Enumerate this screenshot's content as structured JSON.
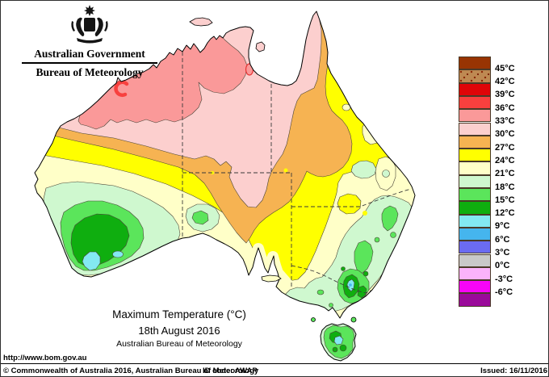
{
  "header": {
    "government": "Australian Government",
    "agency": "Bureau of Meteorology"
  },
  "title": {
    "line1": "Maximum Temperature (°C)",
    "line2": "18th August 2016",
    "line3": "Australian Bureau of Meteorology"
  },
  "map": {
    "bands": {
      "45_plus": "#983403",
      "42_45": "#BE8952",
      "39_42": "#DF0508",
      "36_39": "#F8403E",
      "33_36": "#FA9999",
      "30_33": "#FCCFCE",
      "27_30": "#F6B352",
      "24_27": "#FFFF00",
      "21_24": "#FFFFC8",
      "18_21": "#CFF8CF",
      "15_18": "#5BE55B",
      "12_15": "#0FAE0F",
      "9_12": "#83E9F2",
      "6_9": "#45B5EE",
      "3_6": "#6B6BF2",
      "0_3": "#C9C9C9",
      "n3_0": "#FBB3FB",
      "n6_n3": "#F705F7",
      "below_n6": "#9A0A9A"
    }
  },
  "legend": {
    "entries": [
      {
        "band": "45_plus",
        "label": "45°C",
        "speckled": false
      },
      {
        "band": "42_45",
        "label": "42°C",
        "speckled": true
      },
      {
        "band": "39_42",
        "label": "39°C",
        "speckled": false
      },
      {
        "band": "36_39",
        "label": "36°C",
        "speckled": false
      },
      {
        "band": "33_36",
        "label": "33°C",
        "speckled": false
      },
      {
        "band": "30_33",
        "label": "30°C",
        "speckled": false
      },
      {
        "band": "27_30",
        "label": "27°C",
        "speckled": false
      },
      {
        "band": "24_27",
        "label": "24°C",
        "speckled": false
      },
      {
        "band": "21_24",
        "label": "21°C",
        "speckled": false
      },
      {
        "band": "18_21",
        "label": "18°C",
        "speckled": false
      },
      {
        "band": "15_18",
        "label": "15°C",
        "speckled": false
      },
      {
        "band": "12_15",
        "label": "12°C",
        "speckled": false
      },
      {
        "band": "9_12",
        "label": "9°C",
        "speckled": false
      },
      {
        "band": "6_9",
        "label": "6°C",
        "speckled": false
      },
      {
        "band": "3_6",
        "label": "3°C",
        "speckled": false
      },
      {
        "band": "0_3",
        "label": "0°C",
        "speckled": false
      },
      {
        "band": "n3_0",
        "label": "-3°C",
        "speckled": false
      },
      {
        "band": "n6_n3",
        "label": "-6°C",
        "speckled": false
      },
      {
        "band": "below_n6",
        "label": null,
        "speckled": false
      }
    ]
  },
  "footer": {
    "url": "http://www.bom.gov.au",
    "copyright": "© Commonwealth of Australia 2016, Australian Bureau of Meteorology",
    "id_code": "ID code: AWAP",
    "issued": "Issued: 16/11/2016"
  }
}
